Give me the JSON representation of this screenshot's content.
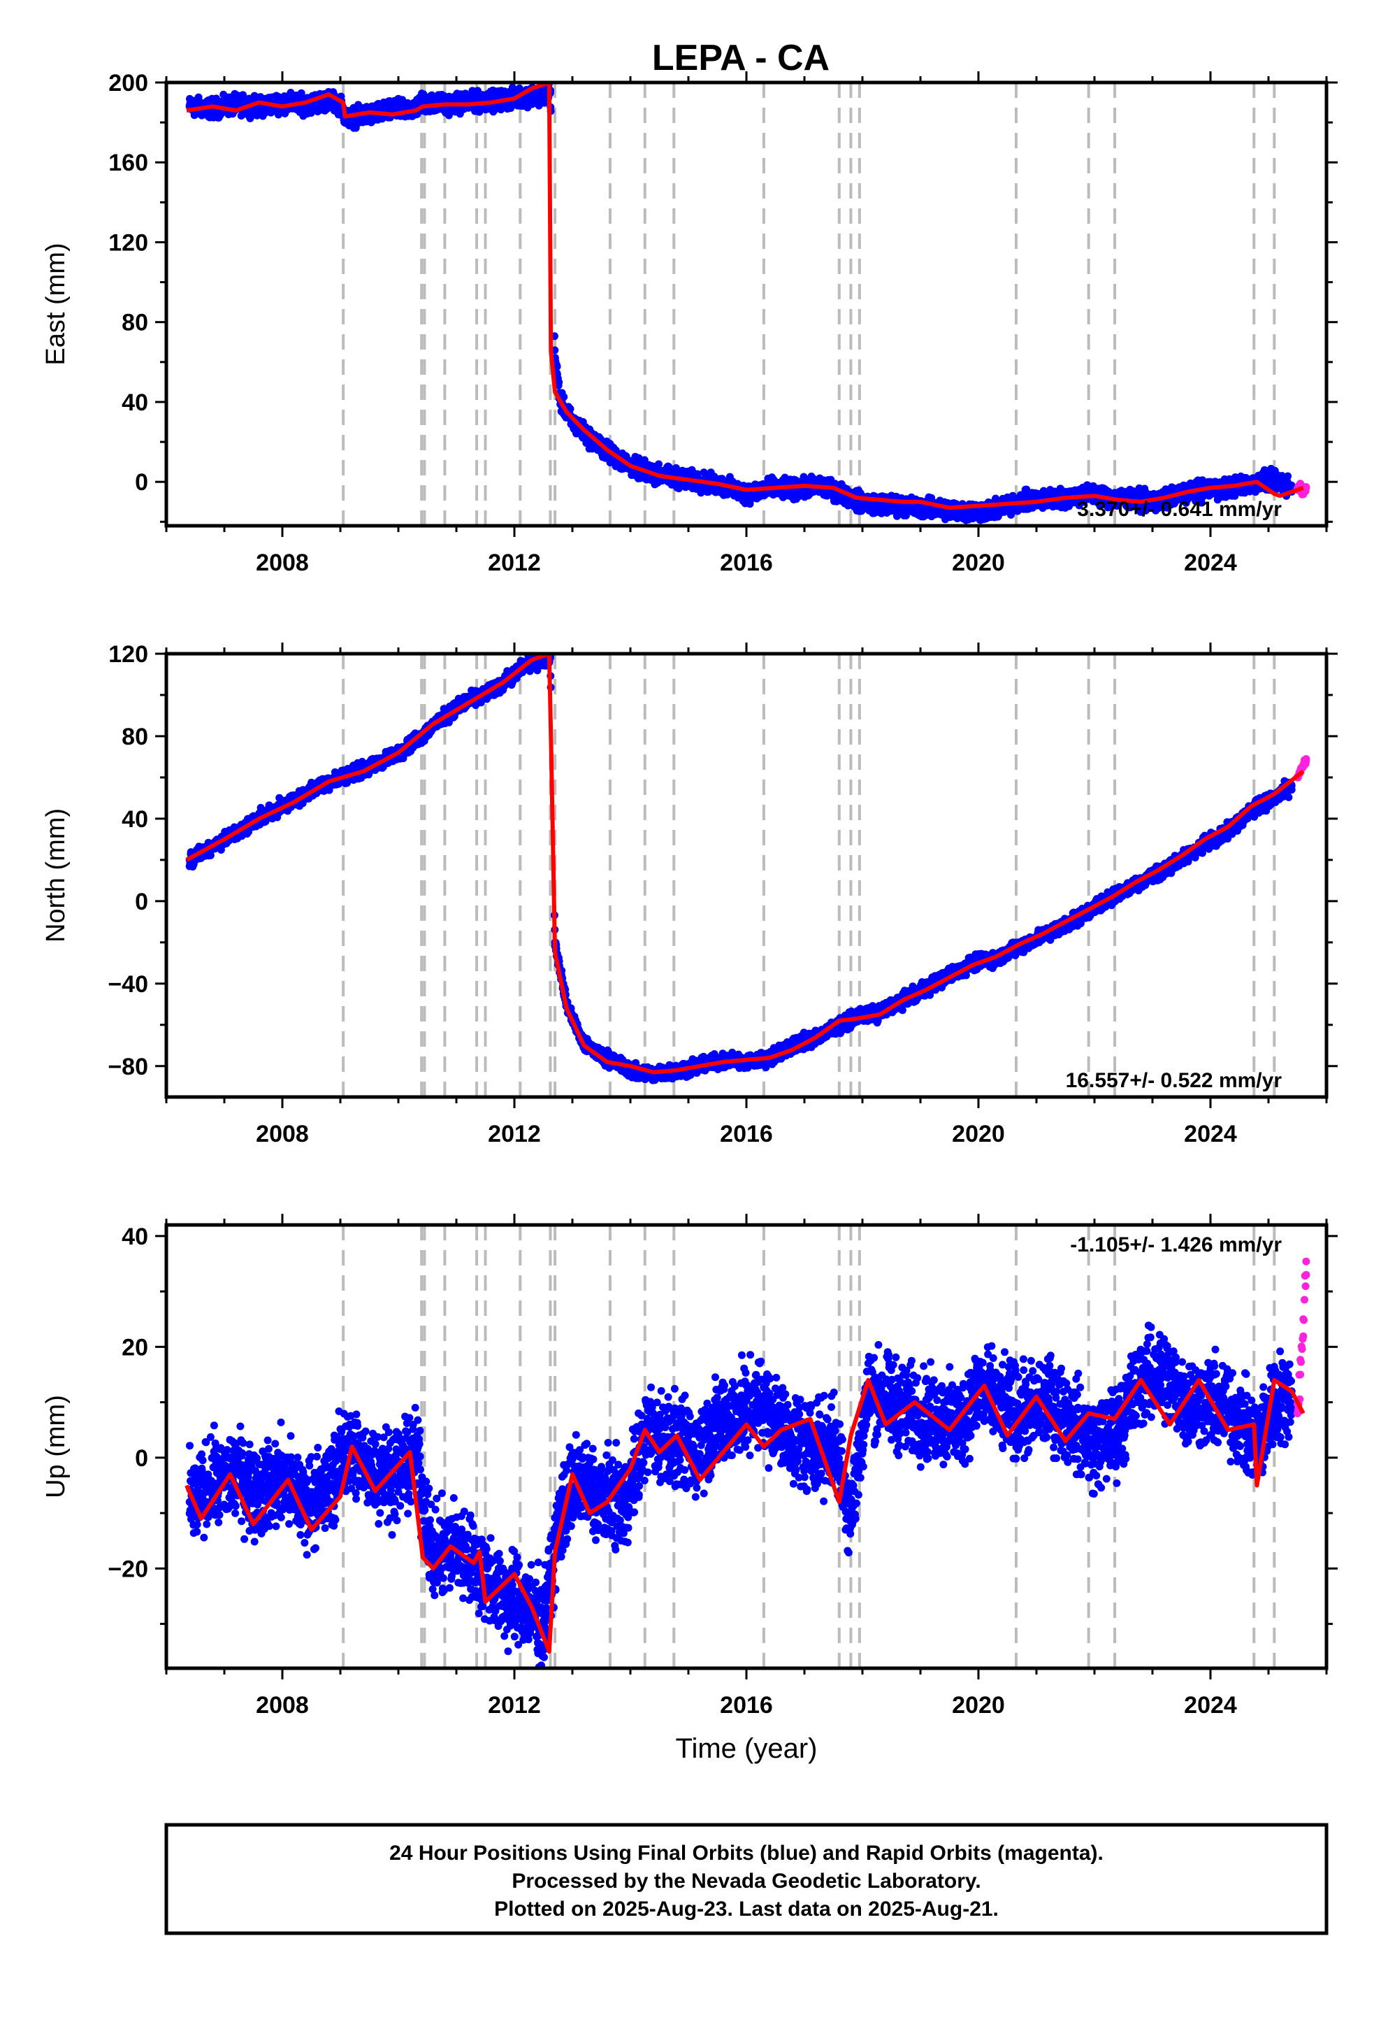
{
  "title": "LEPA - CA",
  "footer": {
    "line1": "24 Hour Positions Using Final Orbits (blue) and Rapid Orbits (magenta).",
    "line2": "Processed by the Nevada Geodetic Laboratory.",
    "line3": "Plotted on 2025-Aug-23. Last data on 2025-Aug-21."
  },
  "colors": {
    "final": "#0000ff",
    "rapid": "#ff22dd",
    "model": "#ff0000",
    "events": "#bbbbbb"
  },
  "chart_data": [
    {
      "type": "scatter",
      "component": "east",
      "ylabel": "East (mm)",
      "xlabel": "",
      "xlim": [
        2006.0,
        2026.0
      ],
      "ylim": [
        -22,
        200
      ],
      "xticks": [
        2008,
        2012,
        2016,
        2020,
        2024
      ],
      "yticks": [
        0,
        40,
        80,
        120,
        160,
        200
      ],
      "rate_label": "3.370+/- 0.641 mm/yr",
      "rate_position": "bottom-right",
      "grid": false,
      "event_lines": [
        2009.05,
        2010.4,
        2010.45,
        2010.8,
        2011.35,
        2011.5,
        2012.1,
        2012.62,
        2012.7,
        2013.65,
        2014.25,
        2014.75,
        2016.3,
        2017.6,
        2017.8,
        2017.95,
        2020.65,
        2021.9,
        2022.35,
        2024.75,
        2025.1
      ],
      "series": [
        {
          "name": "Final Orbits (blue)",
          "x": [
            2006.4,
            2006.8,
            2007.2,
            2007.6,
            2008.0,
            2008.4,
            2008.8,
            2009.0,
            2009.1,
            2009.5,
            2009.9,
            2010.3,
            2010.4,
            2010.8,
            2011.2,
            2011.6,
            2012.0,
            2012.2,
            2012.62,
            2012.7,
            2012.8,
            2013.0,
            2013.3,
            2013.6,
            2014.0,
            2014.4,
            2014.8,
            2015.2,
            2015.6,
            2016.0,
            2016.4,
            2016.8,
            2017.2,
            2017.6,
            2017.95,
            2018.3,
            2018.7,
            2019.1,
            2019.5,
            2019.9,
            2020.3,
            2020.7,
            2021.1,
            2021.5,
            2021.9,
            2022.3,
            2022.7,
            2023.1,
            2023.5,
            2023.9,
            2024.3,
            2024.7,
            2025.1,
            2025.4
          ],
          "y": [
            188,
            187,
            189,
            188,
            190,
            189,
            191,
            189,
            182,
            184,
            186,
            187,
            190,
            189,
            190,
            191,
            192,
            193,
            195,
            62,
            40,
            30,
            22,
            15,
            8,
            4,
            2,
            0,
            -2,
            -6,
            -3,
            -4,
            -2,
            -5,
            -10,
            -11,
            -12,
            -13,
            -14,
            -15,
            -14,
            -10,
            -9,
            -8,
            -6,
            -8,
            -9,
            -10,
            -6,
            -4,
            -3,
            -1,
            1,
            -3
          ],
          "spread": 4
        },
        {
          "name": "Rapid Orbits (magenta)",
          "x": [
            2025.5,
            2025.55,
            2025.6,
            2025.65
          ],
          "y": [
            -4,
            -2,
            -6,
            -3
          ],
          "spread": 2
        },
        {
          "name": "model",
          "x": [
            2006.35,
            2006.8,
            2007.2,
            2007.6,
            2008.0,
            2008.4,
            2008.8,
            2009.05,
            2009.08,
            2009.5,
            2009.9,
            2010.3,
            2010.42,
            2010.8,
            2011.2,
            2011.6,
            2012.0,
            2012.3,
            2012.6,
            2012.63,
            2012.7,
            2012.9,
            2013.2,
            2013.6,
            2014.0,
            2014.5,
            2015.0,
            2015.5,
            2016.0,
            2016.5,
            2017.0,
            2017.5,
            2017.9,
            2018.3,
            2018.7,
            2019.0,
            2019.5,
            2020.0,
            2020.5,
            2021.0,
            2021.5,
            2022.0,
            2022.4,
            2022.8,
            2023.2,
            2023.6,
            2024.0,
            2024.4,
            2024.8,
            2025.1,
            2025.2,
            2025.6
          ],
          "y": [
            186,
            188,
            186,
            190,
            188,
            190,
            194,
            190,
            183,
            185,
            184,
            186,
            188,
            189,
            189,
            190,
            192,
            197,
            200,
            65,
            45,
            35,
            26,
            16,
            8,
            3,
            1,
            -1,
            -4,
            -3,
            -2,
            -3,
            -8,
            -9,
            -10,
            -10,
            -13,
            -12,
            -11,
            -10,
            -8,
            -7,
            -9,
            -10,
            -8,
            -5,
            -3,
            -2,
            0,
            -6,
            -7,
            -3
          ]
        }
      ]
    },
    {
      "type": "scatter",
      "component": "north",
      "ylabel": "North (mm)",
      "xlabel": "",
      "xlim": [
        2006.0,
        2026.0
      ],
      "ylim": [
        -95,
        120
      ],
      "xticks": [
        2008,
        2012,
        2016,
        2020,
        2024
      ],
      "yticks": [
        -80,
        -40,
        0,
        40,
        80,
        120
      ],
      "rate_label": "16.557+/- 0.522 mm/yr",
      "rate_position": "bottom-right",
      "grid": false,
      "event_lines": [
        2009.05,
        2010.4,
        2010.45,
        2010.8,
        2011.35,
        2011.5,
        2012.1,
        2012.62,
        2012.7,
        2013.65,
        2014.25,
        2014.75,
        2016.3,
        2017.6,
        2017.8,
        2017.95,
        2020.65,
        2021.9,
        2022.35,
        2024.75,
        2025.1
      ],
      "series": [
        {
          "name": "Final Orbits (blue)",
          "x": [
            2006.4,
            2006.8,
            2007.2,
            2007.6,
            2008.0,
            2008.4,
            2008.8,
            2009.2,
            2009.6,
            2010.0,
            2010.4,
            2010.8,
            2011.2,
            2011.6,
            2012.0,
            2012.2,
            2012.62,
            2012.7,
            2012.9,
            2013.2,
            2013.6,
            2014.0,
            2014.4,
            2014.8,
            2015.2,
            2015.6,
            2016.0,
            2016.4,
            2016.8,
            2017.2,
            2017.6,
            2017.9,
            2018.3,
            2018.7,
            2019.1,
            2019.5,
            2019.9,
            2020.3,
            2020.7,
            2021.1,
            2021.5,
            2021.9,
            2022.3,
            2022.7,
            2023.1,
            2023.5,
            2023.9,
            2024.3,
            2024.7,
            2025.1,
            2025.4
          ],
          "y": [
            20,
            27,
            33,
            40,
            46,
            52,
            58,
            62,
            66,
            72,
            80,
            90,
            97,
            102,
            110,
            115,
            118,
            -20,
            -50,
            -70,
            -76,
            -82,
            -84,
            -82,
            -80,
            -77,
            -78,
            -76,
            -70,
            -66,
            -60,
            -56,
            -54,
            -48,
            -42,
            -36,
            -30,
            -28,
            -22,
            -17,
            -11,
            -5,
            2,
            8,
            14,
            20,
            28,
            34,
            44,
            50,
            56
          ],
          "spread": 3
        },
        {
          "name": "Rapid Orbits (magenta)",
          "x": [
            2025.5,
            2025.55,
            2025.6,
            2025.65
          ],
          "y": [
            60,
            63,
            66,
            68
          ],
          "spread": 2
        },
        {
          "name": "model",
          "x": [
            2006.35,
            2007.0,
            2007.6,
            2008.2,
            2008.8,
            2009.4,
            2010.0,
            2010.6,
            2011.2,
            2011.8,
            2012.3,
            2012.6,
            2012.63,
            2012.7,
            2012.9,
            2013.2,
            2013.6,
            2014.0,
            2014.4,
            2014.8,
            2015.2,
            2015.6,
            2016.0,
            2016.4,
            2016.8,
            2017.2,
            2017.6,
            2017.9,
            2018.3,
            2018.7,
            2019.1,
            2019.5,
            2019.9,
            2020.3,
            2020.7,
            2021.1,
            2021.5,
            2021.9,
            2022.3,
            2022.7,
            2023.1,
            2023.5,
            2023.9,
            2024.3,
            2024.7,
            2025.1,
            2025.6
          ],
          "y": [
            20,
            30,
            40,
            48,
            58,
            63,
            72,
            86,
            96,
            106,
            117,
            120,
            80,
            -25,
            -52,
            -70,
            -78,
            -80,
            -83,
            -82,
            -80,
            -78,
            -77,
            -76,
            -72,
            -66,
            -58,
            -57,
            -55,
            -48,
            -43,
            -37,
            -31,
            -27,
            -21,
            -16,
            -10,
            -4,
            2,
            9,
            15,
            22,
            30,
            36,
            46,
            52,
            63
          ]
        }
      ]
    },
    {
      "type": "scatter",
      "component": "up",
      "ylabel": "Up (mm)",
      "xlabel": "Time (year)",
      "xlim": [
        2006.0,
        2026.0
      ],
      "ylim": [
        -38,
        42
      ],
      "xticks": [
        2008,
        2012,
        2016,
        2020,
        2024
      ],
      "yticks": [
        -20,
        0,
        20,
        40
      ],
      "rate_label": "-1.105+/- 1.426 mm/yr",
      "rate_position": "top-right",
      "grid": false,
      "event_lines": [
        2009.05,
        2010.4,
        2010.45,
        2010.8,
        2011.35,
        2011.5,
        2012.1,
        2012.62,
        2012.7,
        2013.65,
        2014.25,
        2014.75,
        2016.3,
        2017.6,
        2017.8,
        2017.95,
        2020.65,
        2021.9,
        2022.35,
        2024.75,
        2025.1
      ],
      "series": [
        {
          "name": "Final Orbits (blue)",
          "x": [
            2006.4,
            2006.8,
            2007.2,
            2007.6,
            2008.0,
            2008.4,
            2008.8,
            2009.1,
            2009.5,
            2009.9,
            2010.3,
            2010.6,
            2011.0,
            2011.4,
            2011.8,
            2012.2,
            2012.5,
            2012.8,
            2013.1,
            2013.5,
            2013.9,
            2014.3,
            2014.7,
            2015.1,
            2015.5,
            2015.9,
            2016.3,
            2016.7,
            2017.1,
            2017.5,
            2017.8,
            2018.1,
            2018.5,
            2018.9,
            2019.3,
            2019.7,
            2020.0,
            2020.4,
            2020.8,
            2021.2,
            2021.6,
            2022.0,
            2022.4,
            2022.8,
            2023.2,
            2023.6,
            2024.0,
            2024.4,
            2024.8,
            2025.1,
            2025.4
          ],
          "y": [
            -8,
            -5,
            -3,
            -6,
            -4,
            -8,
            -6,
            2,
            -2,
            -3,
            0,
            -18,
            -16,
            -20,
            -25,
            -27,
            -30,
            -10,
            -4,
            -7,
            -8,
            5,
            3,
            1,
            6,
            8,
            10,
            4,
            2,
            3,
            -10,
            12,
            10,
            8,
            7,
            6,
            13,
            9,
            8,
            10,
            7,
            2,
            5,
            14,
            15,
            10,
            10,
            8,
            2,
            10,
            12
          ],
          "spread": 7
        },
        {
          "name": "Rapid Orbits (magenta)",
          "x": [
            2025.5,
            2025.55,
            2025.6,
            2025.65
          ],
          "y": [
            8,
            15,
            25,
            33
          ],
          "spread": 4
        },
        {
          "name": "model",
          "x": [
            2006.35,
            2006.6,
            2007.1,
            2007.5,
            2008.1,
            2008.5,
            2009.0,
            2009.2,
            2009.6,
            2010.2,
            2010.42,
            2010.6,
            2010.9,
            2011.3,
            2011.4,
            2011.5,
            2011.7,
            2012.0,
            2012.3,
            2012.6,
            2012.7,
            2013.0,
            2013.3,
            2013.6,
            2014.0,
            2014.25,
            2014.5,
            2014.8,
            2015.2,
            2015.6,
            2016.0,
            2016.3,
            2016.6,
            2017.1,
            2017.6,
            2017.8,
            2018.1,
            2018.4,
            2018.9,
            2019.5,
            2020.1,
            2020.5,
            2021.0,
            2021.5,
            2021.9,
            2022.35,
            2022.8,
            2023.3,
            2023.8,
            2024.3,
            2024.75,
            2024.8,
            2025.1,
            2025.4,
            2025.6
          ],
          "y": [
            -5,
            -11,
            -3,
            -12,
            -4,
            -13,
            -7,
            2,
            -6,
            1,
            -18,
            -20,
            -16,
            -19,
            -17,
            -26,
            -24,
            -21,
            -27,
            -35,
            -17,
            -3,
            -10,
            -8,
            -2,
            5,
            1,
            4,
            -4,
            1,
            6,
            2,
            5,
            7,
            -8,
            4,
            14,
            6,
            10,
            5,
            13,
            4,
            11,
            3,
            8,
            7,
            14,
            6,
            14,
            5,
            6,
            -5,
            14,
            12,
            8
          ]
        }
      ]
    }
  ]
}
